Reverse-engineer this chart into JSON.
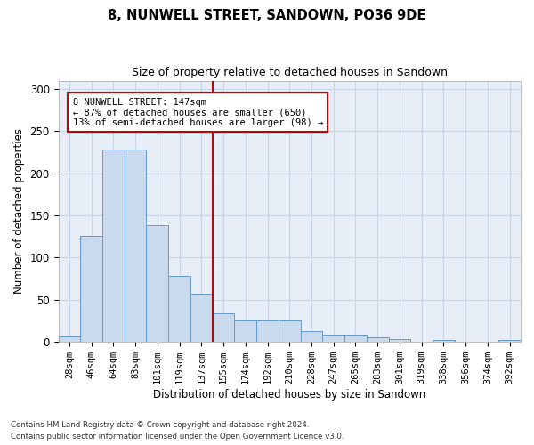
{
  "title1": "8, NUNWELL STREET, SANDOWN, PO36 9DE",
  "title2": "Size of property relative to detached houses in Sandown",
  "xlabel": "Distribution of detached houses by size in Sandown",
  "ylabel": "Number of detached properties",
  "footnote1": "Contains HM Land Registry data © Crown copyright and database right 2024.",
  "footnote2": "Contains public sector information licensed under the Open Government Licence v3.0.",
  "bar_labels": [
    "28sqm",
    "46sqm",
    "64sqm",
    "83sqm",
    "101sqm",
    "119sqm",
    "137sqm",
    "155sqm",
    "174sqm",
    "192sqm",
    "210sqm",
    "228sqm",
    "247sqm",
    "265sqm",
    "283sqm",
    "301sqm",
    "319sqm",
    "338sqm",
    "356sqm",
    "374sqm",
    "392sqm"
  ],
  "bar_values": [
    7,
    126,
    228,
    228,
    138,
    78,
    57,
    34,
    26,
    26,
    26,
    13,
    9,
    9,
    5,
    3,
    0,
    2,
    0,
    0,
    2
  ],
  "bar_color": "#c9d9ee",
  "bar_edge_color": "#6699cc",
  "grid_color": "#c8d4e8",
  "background_color": "#e8eef8",
  "vline_color": "#cc0000",
  "vline_x_index": 7,
  "annotation_text": "8 NUNWELL STREET: 147sqm\n← 87% of detached houses are smaller (650)\n13% of semi-detached houses are larger (98) →",
  "ylim": [
    0,
    310
  ],
  "yticks": [
    0,
    50,
    100,
    150,
    200,
    250,
    300
  ]
}
